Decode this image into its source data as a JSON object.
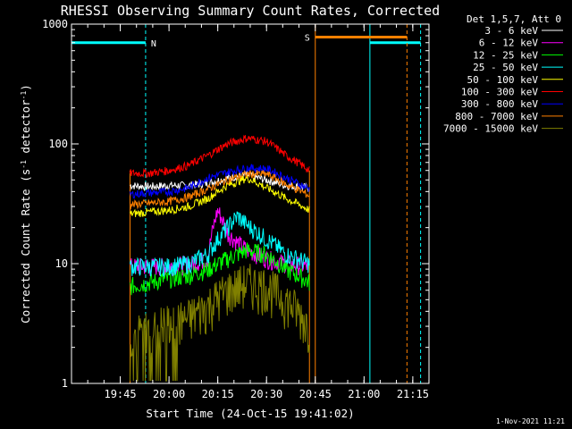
{
  "chart_data": {
    "type": "line",
    "title": "RHESSI Observing Summary Count Rates, Corrected",
    "xlabel": "Start Time (24-Oct-15 19:41:02)",
    "ylabel_parts": [
      "Corrected Count Rate (s",
      "-1",
      " detector",
      "-1",
      ")"
    ],
    "yscale": "log",
    "ylim": [
      1,
      1000
    ],
    "xlim_minutes": [
      19.5,
      21.333
    ],
    "ytick_labels": [
      {
        "value": 1,
        "label": "1"
      },
      {
        "value": 10,
        "label": "10"
      },
      {
        "value": 100,
        "label": "100"
      },
      {
        "value": 1000,
        "label": "1000"
      }
    ],
    "xtick_labels": [
      {
        "value": 19.75,
        "label": "19:45"
      },
      {
        "value": 20.0,
        "label": "20:00"
      },
      {
        "value": 20.25,
        "label": "20:15"
      },
      {
        "value": 20.5,
        "label": "20:30"
      },
      {
        "value": 20.75,
        "label": "20:45"
      },
      {
        "value": 21.0,
        "label": "21:00"
      },
      {
        "value": 21.25,
        "label": "21:15"
      }
    ],
    "legend_title": "Det 1,5,7, Att 0",
    "legend_position": "right",
    "data_window": [
      19.8,
      20.72
    ],
    "series": [
      {
        "name": "3 - 6 keV",
        "color": "#ffffff",
        "x": [
          19.8,
          19.9,
          20.0,
          20.1,
          20.2,
          20.3,
          20.4,
          20.5,
          20.6,
          20.72
        ],
        "y": [
          45,
          44,
          45,
          45,
          47,
          52,
          55,
          50,
          45,
          43
        ]
      },
      {
        "name": "6 - 12 keV",
        "color": "#ff00ff",
        "x": [
          19.8,
          19.9,
          20.0,
          20.1,
          20.2,
          20.25,
          20.3,
          20.35,
          20.4,
          20.5,
          20.6,
          20.72
        ],
        "y": [
          9.5,
          9.5,
          9.5,
          9.8,
          11,
          28,
          18,
          15,
          13,
          11,
          10,
          9.5
        ]
      },
      {
        "name": "12 - 25 keV",
        "color": "#00ff00",
        "x": [
          19.8,
          19.9,
          20.0,
          20.1,
          20.2,
          20.3,
          20.4,
          20.5,
          20.6,
          20.72
        ],
        "y": [
          6.5,
          7,
          7.5,
          8,
          9,
          11,
          13,
          12,
          9,
          7
        ]
      },
      {
        "name": "25 - 50 keV",
        "color": "#00ffff",
        "x": [
          19.8,
          19.9,
          20.0,
          20.1,
          20.2,
          20.3,
          20.35,
          20.4,
          20.5,
          20.6,
          20.72
        ],
        "y": [
          9.5,
          9.5,
          9.5,
          10,
          12,
          20,
          25,
          21,
          16,
          12,
          10
        ]
      },
      {
        "name": "50 - 100 keV",
        "color": "#ffff00",
        "x": [
          19.8,
          19.9,
          20.0,
          20.1,
          20.2,
          20.3,
          20.4,
          20.5,
          20.6,
          20.72
        ],
        "y": [
          26,
          27,
          28,
          30,
          35,
          45,
          52,
          43,
          35,
          28
        ]
      },
      {
        "name": "100 - 300 keV",
        "color": "#ff0000",
        "x": [
          19.8,
          19.9,
          20.0,
          20.1,
          20.2,
          20.3,
          20.4,
          20.5,
          20.6,
          20.72
        ],
        "y": [
          57,
          57,
          60,
          66,
          80,
          100,
          112,
          105,
          80,
          60
        ]
      },
      {
        "name": "300 - 800 keV",
        "color": "#0000ff",
        "x": [
          19.8,
          19.9,
          20.0,
          20.1,
          20.2,
          20.3,
          20.4,
          20.5,
          20.6,
          20.72
        ],
        "y": [
          38,
          39,
          40,
          43,
          52,
          58,
          63,
          62,
          52,
          42
        ]
      },
      {
        "name": "800 - 7000 keV",
        "color": "#ff8000",
        "x": [
          19.8,
          19.9,
          20.0,
          20.1,
          20.2,
          20.3,
          20.4,
          20.5,
          20.6,
          20.72
        ],
        "y": [
          31,
          32,
          33,
          36,
          42,
          50,
          56,
          56,
          46,
          37
        ]
      },
      {
        "name": "7000 - 15000 keV",
        "color": "#808000",
        "x": [
          19.8,
          19.9,
          20.0,
          20.1,
          20.2,
          20.3,
          20.4,
          20.5,
          20.6,
          20.72
        ],
        "y": [
          2.5,
          2.8,
          3.2,
          3.5,
          4.5,
          6,
          7,
          6.5,
          5,
          3
        ]
      }
    ],
    "flag_bars": [
      {
        "label": "N",
        "color": "#00ffff",
        "level": 700,
        "segments": [
          [
            19.5,
            19.88
          ],
          [
            21.03,
            21.29
          ]
        ],
        "dashed_lines": [
          19.88,
          21.29
        ],
        "solid_lines": [
          19.5,
          21.03
        ]
      },
      {
        "label": "S",
        "color": "#ff8000",
        "level": 780,
        "segments": [
          [
            20.75,
            21.22
          ]
        ],
        "dashed_lines": [
          21.22
        ],
        "solid_lines": [
          20.75
        ]
      }
    ],
    "orange_window_lines": [
      19.8,
      20.72
    ]
  },
  "footer_date": "1-Nov-2021 11:21"
}
